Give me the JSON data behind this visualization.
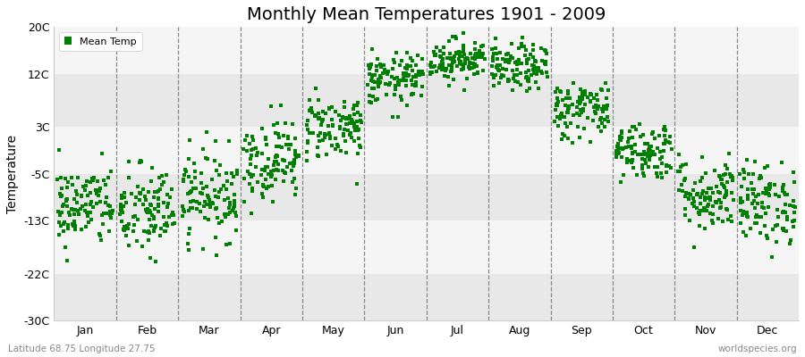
{
  "title": "Monthly Mean Temperatures 1901 - 2009",
  "ylabel": "Temperature",
  "subtitle_left": "Latitude 68.75 Longitude 27.75",
  "subtitle_right": "worldspecies.org",
  "ylim": [
    -30,
    20
  ],
  "yticks": [
    -30,
    -22,
    -13,
    -5,
    3,
    12,
    20
  ],
  "ytick_labels": [
    "-30C",
    "-22C",
    "-13C",
    "-5C",
    "3C",
    "12C",
    "20C"
  ],
  "months": [
    "Jan",
    "Feb",
    "Mar",
    "Apr",
    "May",
    "Jun",
    "Jul",
    "Aug",
    "Sep",
    "Oct",
    "Nov",
    "Dec"
  ],
  "dot_color": "#008000",
  "bg_color": "#ffffff",
  "band_colors": [
    "#e8e8e8",
    "#f5f5f5"
  ],
  "grid_color": "#999999",
  "legend_label": "Mean Temp",
  "n_years": 109,
  "monthly_means": [
    -10.5,
    -11.5,
    -8.5,
    -2.5,
    3.0,
    11.0,
    14.5,
    13.0,
    6.0,
    -1.0,
    -8.5,
    -10.0
  ],
  "monthly_stds": [
    3.5,
    4.0,
    3.8,
    3.5,
    2.8,
    2.2,
    1.8,
    2.0,
    2.5,
    2.5,
    3.2,
    3.5
  ],
  "title_fontsize": 14,
  "axis_fontsize": 9,
  "ylabel_fontsize": 10
}
